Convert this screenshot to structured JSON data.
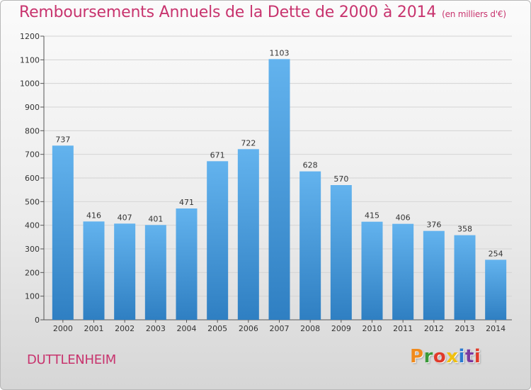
{
  "header": {
    "title": "Remboursements Annuels de la Dette de 2000 à 2014",
    "subtitle": "(en milliers d'€)"
  },
  "footer": {
    "commune": "DUTTLENHEIM",
    "logo_text": "Proxiti",
    "logo_colors": [
      "#f08a1c",
      "#3a9a3a",
      "#e03a2a",
      "#f0c010",
      "#2a7ad0",
      "#7a3aa0",
      "#e03a2a"
    ]
  },
  "colors": {
    "title": "#c8346e",
    "bar_top": "#63b3ee",
    "bar_bottom": "#2f7fc2",
    "grid": "#d4d4d4",
    "axis_text": "#333333"
  },
  "chart_data": {
    "type": "bar",
    "categories": [
      "2000",
      "2001",
      "2002",
      "2003",
      "2004",
      "2005",
      "2006",
      "2007",
      "2008",
      "2009",
      "2010",
      "2011",
      "2012",
      "2013",
      "2014"
    ],
    "values": [
      737,
      416,
      407,
      401,
      471,
      671,
      722,
      1103,
      628,
      570,
      415,
      406,
      376,
      358,
      254
    ],
    "ylim": [
      0,
      1200
    ],
    "yticks": [
      0,
      100,
      200,
      300,
      400,
      500,
      600,
      700,
      800,
      900,
      1000,
      1100,
      1200
    ],
    "grid": true
  }
}
